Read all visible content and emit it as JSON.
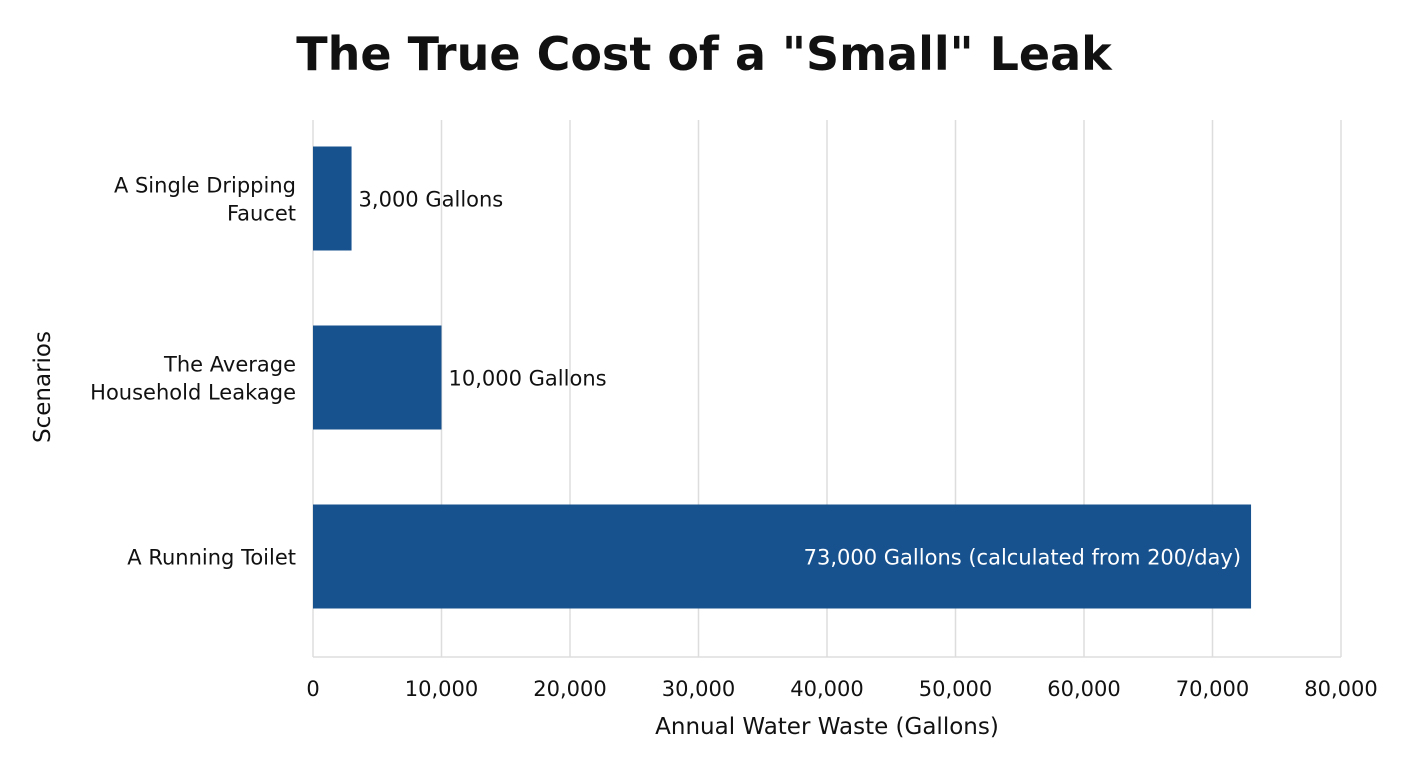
{
  "chart_data": {
    "type": "bar",
    "orientation": "horizontal",
    "title": "The True Cost of a \"Small\" Leak",
    "xlabel": "Annual Water Waste (Gallons)",
    "ylabel": "Scenarios",
    "categories": [
      [
        "A Single Dripping",
        "Faucet"
      ],
      [
        "The Average",
        "Household Leakage"
      ],
      [
        "A Running Toilet"
      ]
    ],
    "values": [
      3000,
      10000,
      73000
    ],
    "data_labels": [
      "3,000 Gallons",
      "10,000 Gallons",
      "73,000 Gallons (calculated from 200/day)"
    ],
    "xlim": [
      0,
      80000
    ],
    "xticks": [
      0,
      10000,
      20000,
      30000,
      40000,
      50000,
      60000,
      70000,
      80000
    ],
    "xtick_labels": [
      "0",
      "10,000",
      "20,000",
      "30,000",
      "40,000",
      "50,000",
      "60,000",
      "70,000",
      "80,000"
    ],
    "grid": "vertical",
    "bar_color": "#17528f",
    "grid_color": "#dddddd"
  }
}
